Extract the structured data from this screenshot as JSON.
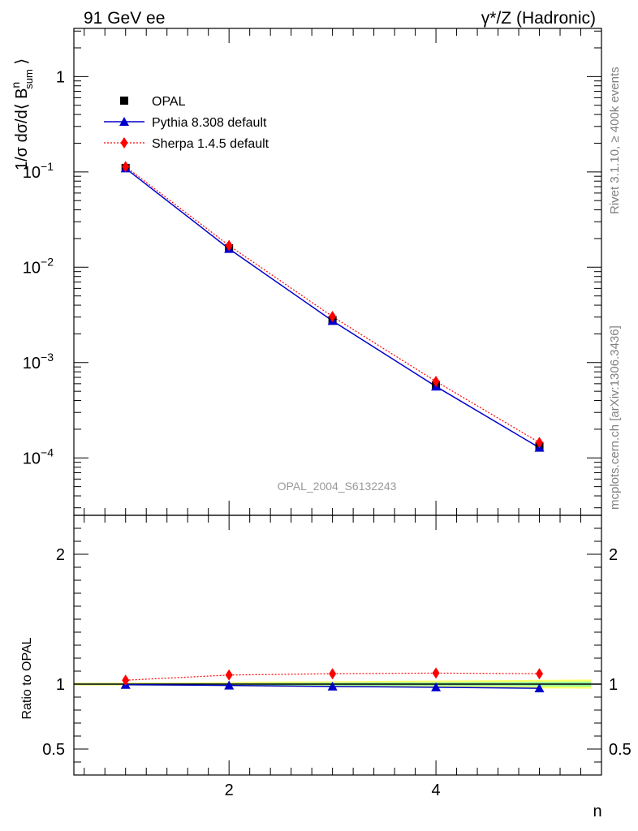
{
  "header": {
    "left_title": "91 GeV ee",
    "right_title": "γ*/Z (Hadronic)"
  },
  "side_labels": {
    "rivet": "Rivet 3.1.10, ≥ 400k events",
    "mcplots": "mcplots.cern.ch [arXiv:1306.3436]"
  },
  "watermark": "OPAL_2004_S6132243",
  "colors": {
    "opal": "#000000",
    "pythia": "#0000cc",
    "sherpa": "#ff0000",
    "band_yellow": "#ffff66",
    "band_green": "#99ff99"
  },
  "legend": [
    {
      "key": "opal",
      "label": "OPAL"
    },
    {
      "key": "pythia",
      "label": "Pythia 8.308 default"
    },
    {
      "key": "sherpa",
      "label": "Sherpa 1.4.5 default"
    }
  ],
  "chart_data": [
    {
      "type": "scatter",
      "panel": "main",
      "ylabel": "1/σ dσ/d⟨ B^n_sum ⟩",
      "yscale": "log",
      "ylim": [
        2.5e-05,
        3.2
      ],
      "xlim": [
        0.5,
        5.6
      ],
      "yticks": [
        {
          "value": 1,
          "label": "1"
        },
        {
          "value": 0.1,
          "label": "10",
          "exp": "−1"
        },
        {
          "value": 0.01,
          "label": "10",
          "exp": "−2"
        },
        {
          "value": 0.001,
          "label": "10",
          "exp": "−3"
        },
        {
          "value": 0.0001,
          "label": "10",
          "exp": "−4"
        }
      ],
      "x": [
        1,
        2,
        3,
        4,
        5
      ],
      "series": [
        {
          "key": "opal",
          "name": "OPAL",
          "values": [
            0.11,
            0.0158,
            0.0028,
            0.00058,
            0.000133
          ]
        },
        {
          "key": "pythia",
          "name": "Pythia 8.308 default",
          "values": [
            0.109,
            0.0156,
            0.00274,
            0.000562,
            0.000128
          ]
        },
        {
          "key": "sherpa",
          "name": "Sherpa 1.4.5 default",
          "values": [
            0.1135,
            0.0169,
            0.00304,
            0.000635,
            0.000145
          ]
        }
      ]
    },
    {
      "type": "line",
      "panel": "ratio",
      "ylabel": "Ratio to OPAL",
      "xlabel": "n",
      "ylim": [
        0.3,
        2.3
      ],
      "xlim": [
        0.5,
        5.6
      ],
      "yticks": [
        {
          "value": 0.5,
          "label": "0.5"
        },
        {
          "value": 1,
          "label": "1"
        },
        {
          "value": 2,
          "label": "2"
        }
      ],
      "xticks": [
        {
          "value": 2,
          "label": "2"
        },
        {
          "value": 4,
          "label": "4"
        }
      ],
      "x": [
        1,
        2,
        3,
        4,
        5
      ],
      "series": [
        {
          "key": "pythia",
          "name": "Pythia 8.308 default",
          "values": [
            0.995,
            0.99,
            0.982,
            0.976,
            0.968
          ]
        },
        {
          "key": "sherpa",
          "name": "Sherpa 1.4.5 default",
          "values": [
            1.03,
            1.07,
            1.08,
            1.085,
            1.08
          ]
        }
      ],
      "band": {
        "x": [
          0.5,
          1.5,
          2.5,
          3.5,
          4.5,
          5.5
        ],
        "yellow_halfwidth": [
          0.01,
          0.012,
          0.02,
          0.025,
          0.03,
          0.035
        ],
        "green_halfwidth": [
          0.005,
          0.006,
          0.01,
          0.013,
          0.016,
          0.02
        ]
      }
    }
  ]
}
